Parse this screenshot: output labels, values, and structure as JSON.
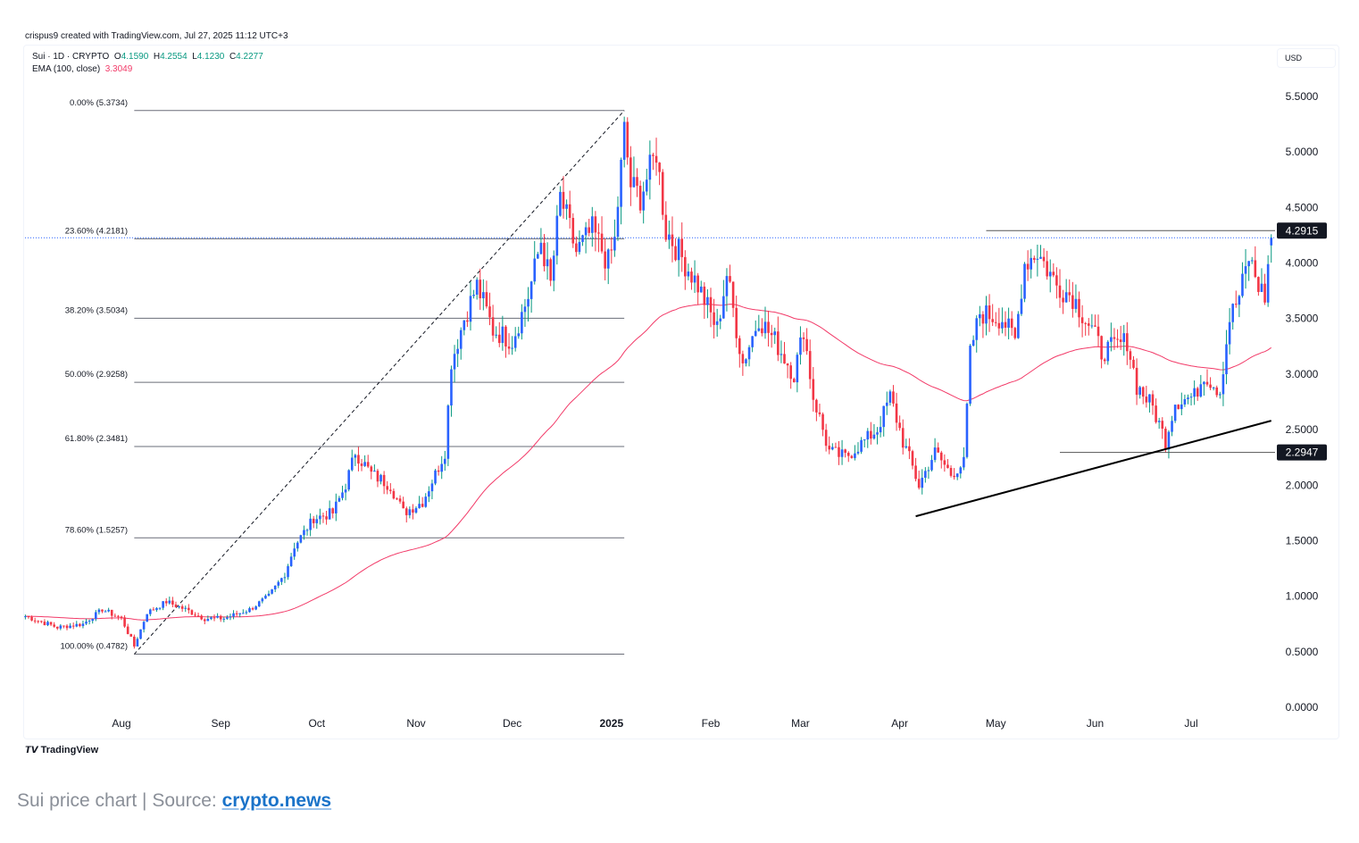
{
  "header": "crispus9 created with TradingView.com, Jul 27, 2025 11:12 UTC+3",
  "legend": {
    "symbol": "Sui · 1D · CRYPTO",
    "o_label": "O",
    "o": "4.1590",
    "h_label": "H",
    "h": "4.2554",
    "l_label": "L",
    "l": "4.1230",
    "c_label": "C",
    "c": "4.2277",
    "ema_label": "EMA (100, close)",
    "ema_value": "3.3049"
  },
  "currency": "USD",
  "footer_logo": "TradingView",
  "caption": {
    "text": "Sui price chart | Source: ",
    "link": "crypto.news"
  },
  "colors": {
    "up": "#2962ff",
    "down": "#f23645",
    "ema": "#f23a68",
    "fib": "#131722",
    "marker": "#131722"
  },
  "chart_data": {
    "type": "candlestick",
    "title": "Sui · 1D · CRYPTO",
    "ylim": [
      0,
      5.5
    ],
    "yticks": [
      "5.5000",
      "5.0000",
      "4.5000",
      "4.0000",
      "3.5000",
      "3.0000",
      "2.5000",
      "2.0000",
      "1.5000",
      "1.0000",
      "0.5000",
      "0.0000"
    ],
    "xticks": [
      {
        "label": "Aug",
        "day": 0
      },
      {
        "label": "Sep",
        "day": 31
      },
      {
        "label": "Oct",
        "day": 61
      },
      {
        "label": "Nov",
        "day": 92
      },
      {
        "label": "Dec",
        "day": 122
      },
      {
        "label": "2025",
        "day": 153,
        "bold": true
      },
      {
        "label": "Feb",
        "day": 184
      },
      {
        "label": "Mar",
        "day": 212
      },
      {
        "label": "Apr",
        "day": 243
      },
      {
        "label": "May",
        "day": 273
      },
      {
        "label": "Jun",
        "day": 304
      },
      {
        "label": "Jul",
        "day": 334
      }
    ],
    "xrange_days": [
      -30,
      360
    ],
    "price_path_note": "[days since Aug 1 2024, close]",
    "price_path": [
      [
        -30,
        0.82
      ],
      [
        -20,
        0.72
      ],
      [
        -12,
        0.75
      ],
      [
        -6,
        0.88
      ],
      [
        0,
        0.8
      ],
      [
        4,
        0.55
      ],
      [
        8,
        0.85
      ],
      [
        14,
        0.95
      ],
      [
        20,
        0.88
      ],
      [
        26,
        0.8
      ],
      [
        32,
        0.8
      ],
      [
        40,
        0.88
      ],
      [
        46,
        1.0
      ],
      [
        51,
        1.2
      ],
      [
        54,
        1.45
      ],
      [
        60,
        1.7
      ],
      [
        66,
        1.75
      ],
      [
        70,
        2.0
      ],
      [
        73,
        2.3
      ],
      [
        78,
        2.1
      ],
      [
        84,
        2.0
      ],
      [
        88,
        1.75
      ],
      [
        94,
        1.85
      ],
      [
        98,
        2.1
      ],
      [
        101,
        2.3
      ],
      [
        103,
        3.1
      ],
      [
        107,
        3.5
      ],
      [
        111,
        3.8
      ],
      [
        116,
        3.4
      ],
      [
        122,
        3.3
      ],
      [
        127,
        3.7
      ],
      [
        131,
        4.2
      ],
      [
        134,
        3.8
      ],
      [
        137,
        4.6
      ],
      [
        142,
        4.1
      ],
      [
        147,
        4.3
      ],
      [
        152,
        4.0
      ],
      [
        154,
        4.2
      ],
      [
        157,
        5.2
      ],
      [
        159,
        4.7
      ],
      [
        162,
        4.6
      ],
      [
        167,
        5.0
      ],
      [
        170,
        4.3
      ],
      [
        176,
        4.0
      ],
      [
        180,
        3.8
      ],
      [
        186,
        3.4
      ],
      [
        189,
        3.9
      ],
      [
        194,
        3.1
      ],
      [
        199,
        3.5
      ],
      [
        204,
        3.3
      ],
      [
        210,
        3.0
      ],
      [
        213,
        3.4
      ],
      [
        216,
        2.8
      ],
      [
        221,
        2.3
      ],
      [
        226,
        2.25
      ],
      [
        236,
        2.5
      ],
      [
        240,
        2.8
      ],
      [
        244,
        2.4
      ],
      [
        249,
        2.0
      ],
      [
        254,
        2.3
      ],
      [
        259,
        2.1
      ],
      [
        263,
        2.2
      ],
      [
        265,
        3.2
      ],
      [
        268,
        3.55
      ],
      [
        275,
        3.5
      ],
      [
        279,
        3.3
      ],
      [
        282,
        4.0
      ],
      [
        286,
        4.1
      ],
      [
        292,
        3.8
      ],
      [
        297,
        3.7
      ],
      [
        303,
        3.4
      ],
      [
        306,
        3.2
      ],
      [
        310,
        3.25
      ],
      [
        314,
        3.3
      ],
      [
        317,
        2.9
      ],
      [
        322,
        2.7
      ],
      [
        326,
        2.4
      ],
      [
        329,
        2.75
      ],
      [
        335,
        2.8
      ],
      [
        338,
        3.0
      ],
      [
        343,
        2.85
      ],
      [
        346,
        3.5
      ],
      [
        349,
        3.7
      ],
      [
        352,
        4.05
      ],
      [
        355,
        3.8
      ],
      [
        357,
        3.7
      ],
      [
        359,
        4.23
      ]
    ],
    "ema_period": 100,
    "fib": [
      {
        "label": "0.00% (5.3734)",
        "value": 5.3734
      },
      {
        "label": "23.60% (4.2181)",
        "value": 4.2181
      },
      {
        "label": "38.20% (3.5034)",
        "value": 3.5034
      },
      {
        "label": "50.00% (2.9258)",
        "value": 2.9258
      },
      {
        "label": "61.80% (2.3481)",
        "value": 2.3481
      },
      {
        "label": "78.60% (1.5257)",
        "value": 1.5257
      },
      {
        "label": "100.00% (0.4782)",
        "value": 0.4782
      }
    ],
    "fib_days": [
      4,
      157
    ],
    "levels": [
      {
        "label": "4.2915",
        "value": 4.2915,
        "from_day": 270
      },
      {
        "label": "2.2947",
        "value": 2.2947,
        "from_day": 293
      }
    ],
    "trendline": [
      [
        248,
        1.72
      ],
      [
        359,
        2.58
      ]
    ],
    "last_price_line": 4.2277
  }
}
